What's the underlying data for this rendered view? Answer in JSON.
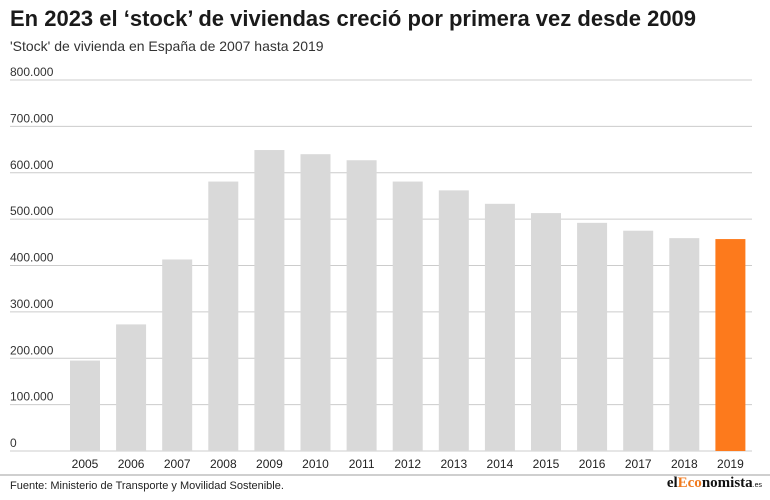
{
  "header": {
    "title": "En 2023 el ‘stock’ de viviendas creció por primera vez desde 2009",
    "subtitle": "'Stock' de vivienda en España de 2007 hasta 2019"
  },
  "footer": {
    "source": "Fuente: Ministerio de Transporte y Movilidad Sostenible.",
    "logo": {
      "prefix": "el",
      "accent": "Eco",
      "rest": "nomista",
      "suffix": ".es"
    }
  },
  "colors": {
    "bar_default": "#d9d9d9",
    "bar_highlight": "#fd7a1c",
    "grid": "#cccccc",
    "logo_accent": "#f07a1e"
  },
  "chart_data": {
    "type": "bar",
    "title": "En 2023 el ‘stock’ de viviendas creció por primera vez desde 2009",
    "subtitle": "'Stock' de vivienda en España de 2007 hasta 2019",
    "xlabel": "",
    "ylabel": "",
    "categories": [
      "2005",
      "2006",
      "2007",
      "2008",
      "2009",
      "2010",
      "2011",
      "2012",
      "2013",
      "2014",
      "2015",
      "2016",
      "2017",
      "2018",
      "2019"
    ],
    "values": [
      195000,
      273000,
      413000,
      581000,
      649000,
      640000,
      627000,
      581000,
      562000,
      533000,
      513000,
      492000,
      475000,
      459000,
      457000
    ],
    "highlight_index": 14,
    "ylim": [
      0,
      800000
    ],
    "yticks": [
      0,
      100000,
      200000,
      300000,
      400000,
      500000,
      600000,
      700000,
      800000
    ],
    "ytick_labels": [
      "0",
      "100.000",
      "200.000",
      "300.000",
      "400.000",
      "500.000",
      "600.000",
      "700.000",
      "800.000"
    ],
    "grid": true,
    "legend": "none"
  }
}
